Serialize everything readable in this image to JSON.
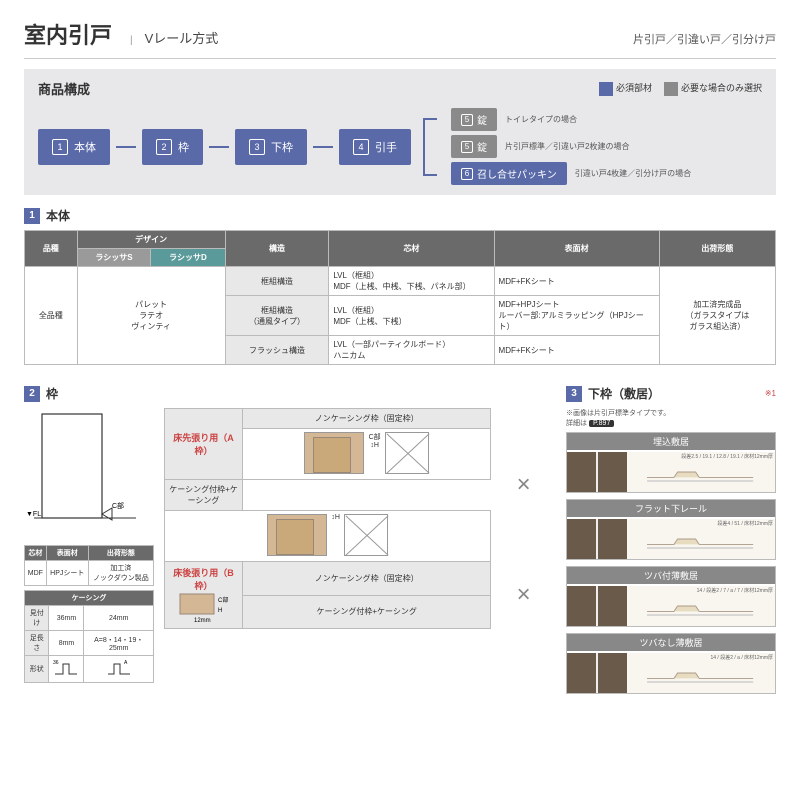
{
  "header": {
    "title": "室内引戸",
    "subtitle": "Vレール方式",
    "right": "片引戸／引違い戸／引分け戸"
  },
  "compo": {
    "title": "商品構成",
    "legend": [
      {
        "color": "#5a6aa8",
        "label": "必須部材"
      },
      {
        "color": "#8a8a8a",
        "label": "必要な場合のみ選択"
      }
    ],
    "main": [
      {
        "n": "1",
        "label": "本体"
      },
      {
        "n": "2",
        "label": "枠"
      },
      {
        "n": "3",
        "label": "下枠"
      },
      {
        "n": "4",
        "label": "引手"
      }
    ],
    "branch": [
      {
        "n": "5",
        "label": "錠",
        "cls": "gray",
        "note": "トイレタイプの場合"
      },
      {
        "n": "5",
        "label": "錠",
        "cls": "gray",
        "note": "片引戸標準／引違い戸2枚建の場合"
      },
      {
        "n": "6",
        "label": "召し合せパッキン",
        "cls": "blue",
        "note": "引違い戸4枚建／引分け戸の場合"
      }
    ]
  },
  "sec1": {
    "num": "1",
    "title": "本体",
    "headers": {
      "hinshu": "品種",
      "design": "デザイン",
      "ls": "ラシッサS",
      "ld": "ラシッサD",
      "kouzou": "構造",
      "shin": "芯材",
      "hyomen": "表面材",
      "shukka": "出荷形態"
    },
    "row1": {
      "hinshu": "全品種",
      "designs": "パレット\nラテオ\nヴィンティ"
    },
    "rows": [
      {
        "k": "框組構造",
        "s": "LVL（框組）\nMDF（上桟、中桟、下桟、パネル部）",
        "h": "MDF+FKシート"
      },
      {
        "k": "框組構造\n（通風タイプ）",
        "s": "LVL（框組）\nMDF（上桟、下桟）",
        "h": "MDF+HPJシート\nルーバー部:アルミラッピング（HPJシート）"
      },
      {
        "k": "フラッシュ構造",
        "s": "LVL（一部パーティクルボード）\nハニカム",
        "h": "MDF+FKシート"
      }
    ],
    "shukka": "加工済完成品\n（ガラスタイプは\nガラス組込済）"
  },
  "sec2": {
    "num": "2",
    "title": "枠",
    "mini": {
      "h": [
        "芯材",
        "表面材",
        "出荷形態"
      ],
      "r": [
        "MDF",
        "HPJシート",
        "加工済\nノックダウン製品"
      ]
    },
    "casing": {
      "title": "ケーシング",
      "h": [
        "",
        "36mm",
        "24mm"
      ],
      "r1": [
        "見付け",
        "36mm",
        "24mm"
      ],
      "r2": [
        "足長さ",
        "8mm",
        "A=8・14・19・25mm"
      ],
      "r3": "形状"
    },
    "labels": {
      "a": "床先張り用（A枠）",
      "b": "床後張り用（B枠）",
      "nc": "ノンケーシング枠（固定枠）",
      "kc": "ケーシング付枠+ケーシング",
      "c": "C部",
      "h": "H",
      "d12": "12mm"
    }
  },
  "sec3": {
    "num": "3",
    "title": "下枠（敷居）",
    "star": "※1",
    "note1": "※画像は片引戸標準タイプです。",
    "note2": "詳細は",
    "ref": "P.897",
    "items": [
      {
        "t": "埋込敷居",
        "dims": "段差2.5 / 19.1 / 12.8 / 19.1 / 床材12mm厚"
      },
      {
        "t": "フラット下レール",
        "dims": "段差4 / 51 / 床材12mm厚"
      },
      {
        "t": "ツバ付薄敷居",
        "dims": "14 / 段差2 / 7 / a / 7 / 床材12mm厚"
      },
      {
        "t": "ツバなし薄敷居",
        "dims": "14 / 段差2 / a / 床材12mm厚"
      }
    ]
  }
}
